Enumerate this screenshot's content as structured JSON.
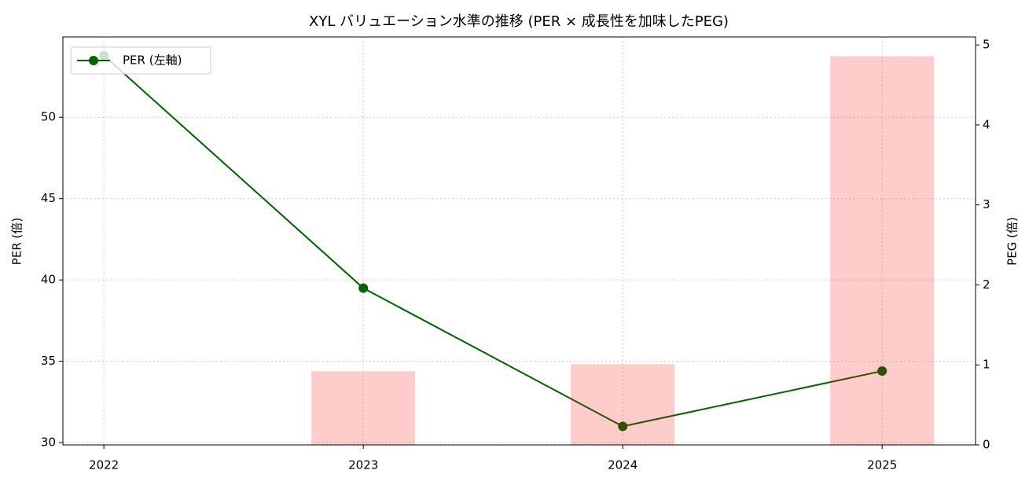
{
  "chart_data": {
    "type": "line_bar",
    "title": "XYL バリュエーション水準の推移 (PER × 成長性を加味したPEG)",
    "categories": [
      "2022",
      "2023",
      "2024",
      "2025"
    ],
    "series": [
      {
        "name": "PER (左軸)",
        "type": "line",
        "color": "#006400",
        "values": [
          53.8,
          39.5,
          31.0,
          34.4
        ]
      },
      {
        "type": "bar",
        "axis": "y2",
        "color": "#ff0000",
        "values": [
          null,
          0.92,
          1.01,
          4.86
        ]
      }
    ],
    "ylabel": "PER (倍)",
    "y2label": "PEG (倍)",
    "ylim": [
      29.86,
      54.94
    ],
    "yticks": [
      30,
      35,
      40,
      45,
      50
    ],
    "y2lim": [
      0,
      5.1
    ],
    "y2ticks": [
      0,
      1,
      2,
      3,
      4,
      5
    ],
    "grid": true,
    "legend": "upper left"
  }
}
